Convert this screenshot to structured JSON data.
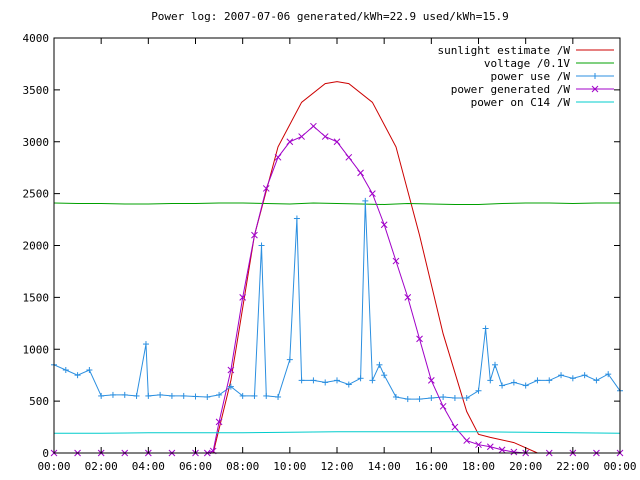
{
  "chart_data": {
    "type": "line",
    "title": "Power log: 2007-07-06 generated/kWh=22.9 used/kWh=15.9",
    "xlabel": "",
    "ylabel": "",
    "xlim": [
      0,
      24
    ],
    "ylim": [
      0,
      4000
    ],
    "x_ticks": [
      "00:00",
      "02:00",
      "04:00",
      "06:00",
      "08:00",
      "10:00",
      "12:00",
      "14:00",
      "16:00",
      "18:00",
      "20:00",
      "22:00",
      "00:00"
    ],
    "y_ticks": [
      "0",
      "500",
      "1000",
      "1500",
      "2000",
      "2500",
      "3000",
      "3500",
      "4000"
    ],
    "legend_position": "top-right",
    "grid": false,
    "series": [
      {
        "name": "sunlight estimate /W",
        "color": "#cc0000",
        "marker": "none",
        "x": [
          6.75,
          7.5,
          8.5,
          9.5,
          10.5,
          11.5,
          12,
          12.5,
          13.5,
          14.5,
          15.5,
          16.5,
          17.5,
          18.0,
          18.5,
          19.5,
          20.5
        ],
        "y": [
          0,
          700,
          2100,
          2950,
          3380,
          3560,
          3580,
          3560,
          3380,
          2950,
          2100,
          1150,
          400,
          180,
          150,
          100,
          0
        ]
      },
      {
        "name": "voltage /0.1V",
        "color": "#00a000",
        "marker": "none",
        "x": [
          0,
          1,
          2,
          3,
          4,
          5,
          6,
          7,
          8,
          9,
          10,
          11,
          12,
          13,
          14,
          15,
          16,
          17,
          18,
          19,
          20,
          21,
          22,
          23,
          24
        ],
        "y": [
          2410,
          2405,
          2405,
          2400,
          2400,
          2405,
          2405,
          2410,
          2410,
          2405,
          2400,
          2410,
          2405,
          2400,
          2395,
          2405,
          2400,
          2395,
          2395,
          2405,
          2410,
          2410,
          2405,
          2410,
          2410
        ]
      },
      {
        "name": "power use /W",
        "color": "#2b8fe0",
        "marker": "plus",
        "x": [
          0,
          0.5,
          1,
          1.5,
          2,
          2.5,
          3,
          3.5,
          3.9,
          4,
          4.5,
          5,
          5.5,
          6,
          6.5,
          7,
          7.5,
          8,
          8.5,
          8.8,
          9,
          9.5,
          10,
          10.3,
          10.5,
          11,
          11.5,
          12,
          12.5,
          13,
          13.2,
          13.5,
          13.8,
          14,
          14.5,
          15,
          15.5,
          16,
          16.5,
          17,
          17.5,
          18,
          18.3,
          18.5,
          18.7,
          19,
          19.5,
          20,
          20.5,
          21,
          21.5,
          22,
          22.5,
          23,
          23.5,
          24
        ],
        "y": [
          850,
          800,
          750,
          800,
          550,
          560,
          560,
          550,
          1050,
          550,
          560,
          550,
          550,
          545,
          540,
          560,
          640,
          550,
          550,
          2000,
          550,
          540,
          900,
          2260,
          700,
          700,
          680,
          700,
          660,
          720,
          2430,
          700,
          850,
          750,
          540,
          520,
          520,
          530,
          540,
          530,
          530,
          600,
          1200,
          700,
          850,
          650,
          680,
          650,
          700,
          700,
          750,
          720,
          750,
          700,
          760,
          600
        ]
      },
      {
        "name": "power generated /W",
        "color": "#a000c8",
        "marker": "cross",
        "x": [
          0,
          1,
          2,
          3,
          4,
          5,
          6,
          6.5,
          6.75,
          7,
          7.5,
          8,
          8.5,
          9,
          9.5,
          10,
          10.5,
          11,
          11.5,
          12,
          12.5,
          13,
          13.5,
          14,
          14.5,
          15,
          15.5,
          16,
          16.5,
          17,
          17.5,
          18,
          18.5,
          19,
          19.5,
          20,
          21,
          22,
          23,
          24
        ],
        "y": [
          0,
          0,
          0,
          0,
          0,
          0,
          0,
          0,
          20,
          300,
          800,
          1500,
          2100,
          2550,
          2850,
          3000,
          3050,
          3150,
          3050,
          3000,
          2850,
          2700,
          2500,
          2200,
          1850,
          1500,
          1100,
          700,
          450,
          250,
          120,
          80,
          60,
          30,
          10,
          0,
          0,
          0,
          0,
          0
        ]
      },
      {
        "name": "power on C14 /W",
        "color": "#00cccc",
        "marker": "none",
        "x": [
          0,
          2,
          4,
          6,
          8,
          10,
          12,
          14,
          16,
          18,
          20,
          22,
          24
        ],
        "y": [
          190,
          190,
          195,
          195,
          195,
          200,
          205,
          205,
          205,
          205,
          200,
          195,
          190
        ]
      }
    ]
  }
}
